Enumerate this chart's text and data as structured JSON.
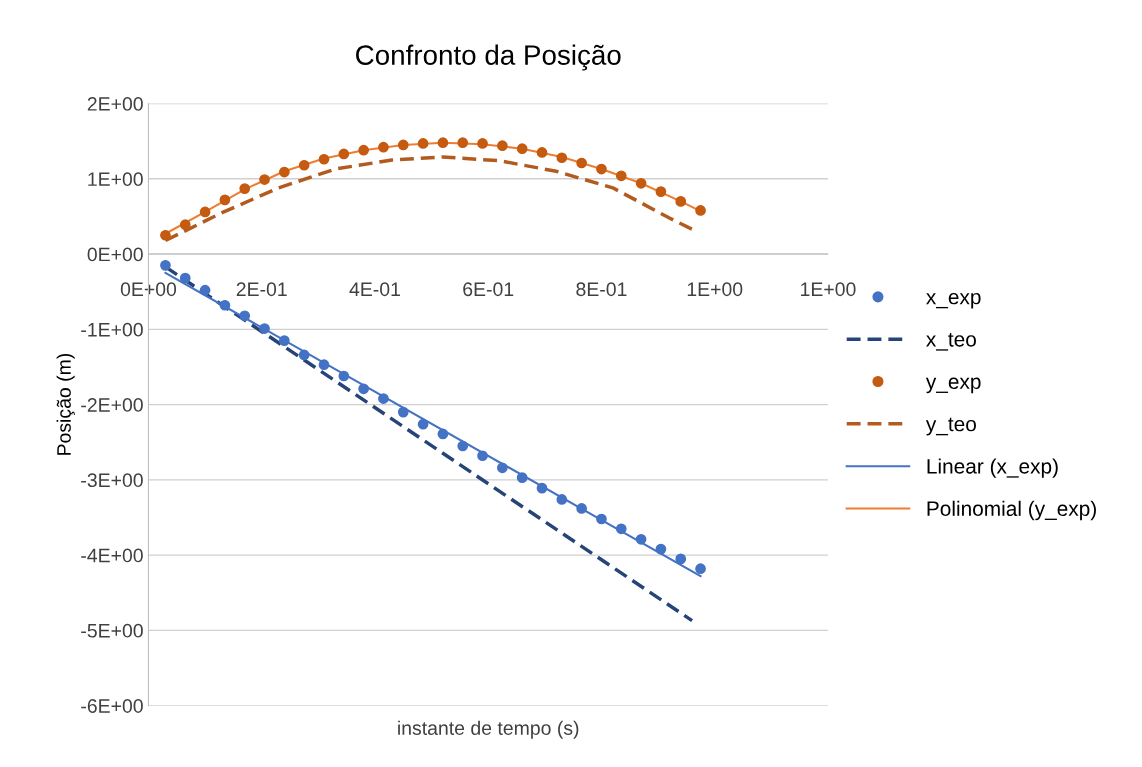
{
  "chart_data": {
    "type": "scatter",
    "title": "Confronto da Posição",
    "xlabel": "instante de tempo (s)",
    "ylabel": "Posição (m)",
    "xlim": [
      0,
      1.2
    ],
    "ylim": [
      -6,
      2
    ],
    "xticks": [
      {
        "value": 0,
        "label": "0E+00"
      },
      {
        "value": 0.2,
        "label": "2E-01"
      },
      {
        "value": 0.4,
        "label": "4E-01"
      },
      {
        "value": 0.6,
        "label": "6E-01"
      },
      {
        "value": 0.8,
        "label": "8E-01"
      },
      {
        "value": 1,
        "label": "1E+00"
      },
      {
        "value": 1.2,
        "label": "1E+00"
      }
    ],
    "yticks": [
      {
        "value": -6,
        "label": "-6E+00"
      },
      {
        "value": -5,
        "label": "-5E+00"
      },
      {
        "value": -4,
        "label": "-4E+00"
      },
      {
        "value": -3,
        "label": "-3E+00"
      },
      {
        "value": -2,
        "label": "-2E+00"
      },
      {
        "value": -1,
        "label": "-1E+00"
      },
      {
        "value": 0,
        "label": "0E+00"
      },
      {
        "value": 1,
        "label": "1E+00"
      },
      {
        "value": 2,
        "label": "2E+00"
      }
    ],
    "grid": "y",
    "legend": "right",
    "x": [
      0.03,
      0.065,
      0.1,
      0.135,
      0.17,
      0.205,
      0.24,
      0.275,
      0.31,
      0.345,
      0.38,
      0.415,
      0.45,
      0.485,
      0.52,
      0.555,
      0.59,
      0.625,
      0.66,
      0.695,
      0.73,
      0.765,
      0.8,
      0.835,
      0.87,
      0.905,
      0.94,
      0.975
    ],
    "series": [
      {
        "name": "x_exp",
        "marker": "circle",
        "color": "#4472c4",
        "values": [
          -0.15,
          -0.32,
          -0.48,
          -0.68,
          -0.82,
          -0.99,
          -1.15,
          -1.34,
          -1.47,
          -1.62,
          -1.79,
          -1.92,
          -2.1,
          -2.26,
          -2.39,
          -2.55,
          -2.68,
          -2.84,
          -2.97,
          -3.11,
          -3.26,
          -3.38,
          -3.52,
          -3.65,
          -3.79,
          -3.92,
          -4.05,
          -4.18
        ]
      },
      {
        "name": "x_teo",
        "type": "line",
        "line_style": "dashed",
        "color": "#264478",
        "x": [
          0.03,
          0.96
        ],
        "values": [
          -0.17,
          -4.87
        ]
      },
      {
        "name": "y_exp",
        "marker": "circle",
        "color": "#c55a11",
        "values": [
          0.25,
          0.39,
          0.56,
          0.72,
          0.87,
          0.99,
          1.09,
          1.18,
          1.26,
          1.33,
          1.38,
          1.42,
          1.45,
          1.47,
          1.48,
          1.48,
          1.47,
          1.44,
          1.4,
          1.35,
          1.28,
          1.21,
          1.13,
          1.04,
          0.94,
          0.83,
          0.7,
          0.58
        ]
      },
      {
        "name": "y_teo",
        "type": "line",
        "line_style": "dashed",
        "color": "#b35a1f",
        "x": [
          0.03,
          0.13,
          0.23,
          0.33,
          0.43,
          0.52,
          0.62,
          0.72,
          0.82,
          0.92,
          0.96
        ],
        "values": [
          0.18,
          0.55,
          0.88,
          1.13,
          1.25,
          1.29,
          1.24,
          1.1,
          0.88,
          0.48,
          0.33
        ]
      },
      {
        "name": "Linear (x_exp)",
        "type": "line",
        "line_style": "solid",
        "color": "#4472c4",
        "x": [
          0.03,
          0.975
        ],
        "values": [
          -0.25,
          -4.28
        ]
      },
      {
        "name": "Polinomial (y_exp)",
        "type": "line",
        "line_style": "solid",
        "color": "#ed7d31",
        "x": [
          0.03,
          0.1,
          0.17,
          0.24,
          0.31,
          0.38,
          0.45,
          0.52,
          0.59,
          0.66,
          0.73,
          0.8,
          0.87,
          0.94,
          0.975
        ],
        "values": [
          0.27,
          0.56,
          0.86,
          1.1,
          1.27,
          1.38,
          1.45,
          1.48,
          1.46,
          1.4,
          1.29,
          1.13,
          0.94,
          0.7,
          0.57
        ]
      }
    ]
  }
}
